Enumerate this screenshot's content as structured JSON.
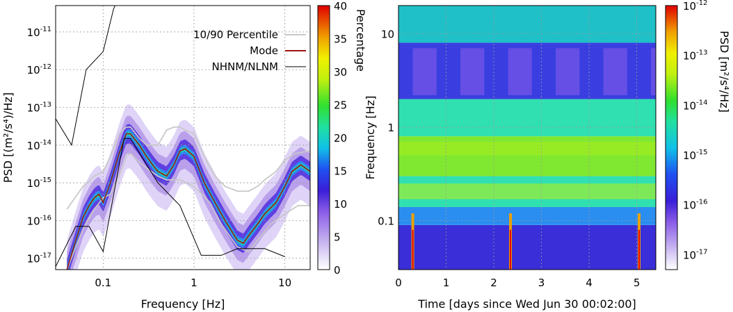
{
  "chart_data": [
    {
      "type": "heatmap",
      "title": "",
      "xlabel": "Frequency [Hz]",
      "ylabel": "PSD [(m²/s⁴)/Hz]",
      "x_scale": "log",
      "y_scale": "log",
      "xlim": [
        0.03,
        19
      ],
      "ylim": [
        5e-18,
        5e-11
      ],
      "x_ticks": [
        "0.1",
        "1",
        "10"
      ],
      "y_ticks": [
        "10-17",
        "10-16",
        "10-15",
        "10-14",
        "10-13",
        "10-12",
        "10-11"
      ],
      "grid": true,
      "legend_position": "top-right",
      "colorbar": {
        "label": "Percentage",
        "min": 0,
        "max": 40,
        "ticks": [
          "0",
          "5",
          "10",
          "15",
          "20",
          "25",
          "30",
          "35",
          "40"
        ]
      },
      "legend": [
        "10/90 Percentile",
        "Mode",
        "NHNM/NLNM"
      ],
      "series": [
        {
          "name": "Mode",
          "color": "#a01010",
          "x": [
            0.04,
            0.05,
            0.06,
            0.07,
            0.08,
            0.09,
            0.1,
            0.12,
            0.15,
            0.18,
            0.2,
            0.25,
            0.3,
            0.35,
            0.4,
            0.5,
            0.6,
            0.7,
            0.8,
            1.0,
            1.3,
            1.7,
            2.2,
            3.0,
            3.5,
            4.0,
            5.0,
            6.0,
            8.0,
            10.0,
            12.0,
            15.0,
            19.0
          ],
          "y": [
            5e-18,
            3e-17,
            1.2e-16,
            2.5e-16,
            4e-16,
            5e-16,
            3e-16,
            1e-15,
            6e-15,
            2e-14,
            2e-14,
            1e-14,
            5e-15,
            3e-15,
            2e-15,
            1.5e-15,
            3e-15,
            7e-15,
            8e-15,
            5e-15,
            1e-15,
            3e-16,
            1e-16,
            3e-17,
            2.5e-17,
            4e-17,
            8e-17,
            1.5e-16,
            3e-16,
            8e-16,
            2e-15,
            3e-15,
            2e-15
          ]
        },
        {
          "name": "90 Percentile",
          "color": "#c8c8c8",
          "x": [
            0.04,
            0.06,
            0.08,
            0.1,
            0.12,
            0.15,
            0.18,
            0.2,
            0.25,
            0.3,
            0.4,
            0.5,
            0.6,
            0.7,
            0.8,
            1.0,
            1.3,
            1.7,
            2.2,
            3.0,
            4.0,
            5.0,
            6.0,
            8.0,
            10.0,
            13.0,
            19.0
          ],
          "y": [
            2e-16,
            8e-16,
            1.5e-15,
            2e-15,
            5e-15,
            2e-14,
            3e-14,
            3e-14,
            1.5e-14,
            1e-14,
            1e-14,
            2.5e-14,
            3e-14,
            3e-14,
            2.5e-14,
            2e-14,
            5e-15,
            1.5e-15,
            8e-16,
            6e-16,
            6e-16,
            8e-16,
            1.2e-15,
            2e-15,
            4e-15,
            6e-15,
            7e-15
          ]
        },
        {
          "name": "10 Percentile",
          "color": "#c8c8c8",
          "x": [
            0.04,
            0.06,
            0.08,
            0.1,
            0.12,
            0.15,
            0.18,
            0.2,
            0.25,
            0.3,
            0.4,
            0.5,
            0.7,
            1.0,
            1.5,
            2.0,
            3.0,
            4.0,
            5.0,
            7.0,
            10.0,
            14.0,
            19.0
          ],
          "y": [
            5e-18,
            6e-17,
            2e-16,
            4e-16,
            5e-16,
            1.5e-15,
            5e-15,
            6e-15,
            3.5e-15,
            2.5e-15,
            1.5e-15,
            1.2e-15,
            1.2e-15,
            8e-16,
            3e-16,
            8e-17,
            2e-17,
            1.5e-17,
            3e-17,
            8e-17,
            1.5e-16,
            2.5e-16,
            2.5e-16
          ]
        },
        {
          "name": "NHNM",
          "color": "#000000",
          "x": [
            0.03,
            0.045,
            0.065,
            0.1,
            0.13,
            0.2,
            0.35,
            1.0,
            2.0,
            3.0,
            19.0
          ],
          "y": [
            5e-14,
            1e-14,
            1e-12,
            3e-12,
            4e-11,
            5e-10,
            5e-10,
            5e-10,
            5e-10,
            5e-10,
            5e-10
          ]
        },
        {
          "name": "NLNM",
          "color": "#000000",
          "x": [
            0.03,
            0.05,
            0.07,
            0.1,
            0.17,
            0.2,
            0.4,
            0.7,
            1.2,
            2.0,
            3.0,
            6.0,
            10.0
          ],
          "y": [
            6e-18,
            7e-17,
            7e-17,
            1.5e-17,
            1.5e-14,
            1.5e-14,
            1e-15,
            2.5e-16,
            1.2e-17,
            1.2e-17,
            1.8e-17,
            1.8e-17,
            1.1e-17
          ]
        }
      ]
    },
    {
      "type": "heatmap",
      "title": "",
      "xlabel": "Time [days since Wed Jun 30 00:02:00]",
      "ylabel": "Frequency [Hz]",
      "x_scale": "linear",
      "y_scale": "log",
      "xlim": [
        0,
        5.4
      ],
      "ylim": [
        0.03,
        20
      ],
      "x_ticks": [
        "0",
        "1",
        "2",
        "3",
        "4",
        "5"
      ],
      "y_ticks": [
        "0.1",
        "1",
        "10"
      ],
      "grid": true,
      "colorbar": {
        "label": "PSD [m²/s⁴/Hz]",
        "scale": "log",
        "min": 5e-18,
        "max": 1e-12,
        "ticks": [
          "10-12",
          "10-13",
          "10-14",
          "10-15",
          "10-16",
          "10-17"
        ]
      },
      "bands": [
        {
          "f_low": 0.03,
          "f_high": 0.09,
          "level": "1e-16"
        },
        {
          "f_low": 0.09,
          "f_high": 0.14,
          "level": "5e-16"
        },
        {
          "f_low": 0.14,
          "f_high": 0.3,
          "level": "3e-15"
        },
        {
          "f_low": 0.3,
          "f_high": 0.8,
          "level": "1e-14"
        },
        {
          "f_low": 0.8,
          "f_high": 2.0,
          "level": "3e-15"
        },
        {
          "f_low": 2.0,
          "f_high": 8.0,
          "level": "2e-16"
        },
        {
          "f_low": 8.0,
          "f_high": 20.0,
          "level": "2e-15"
        }
      ],
      "transients_days": [
        0.3,
        2.35,
        5.05
      ]
    }
  ]
}
